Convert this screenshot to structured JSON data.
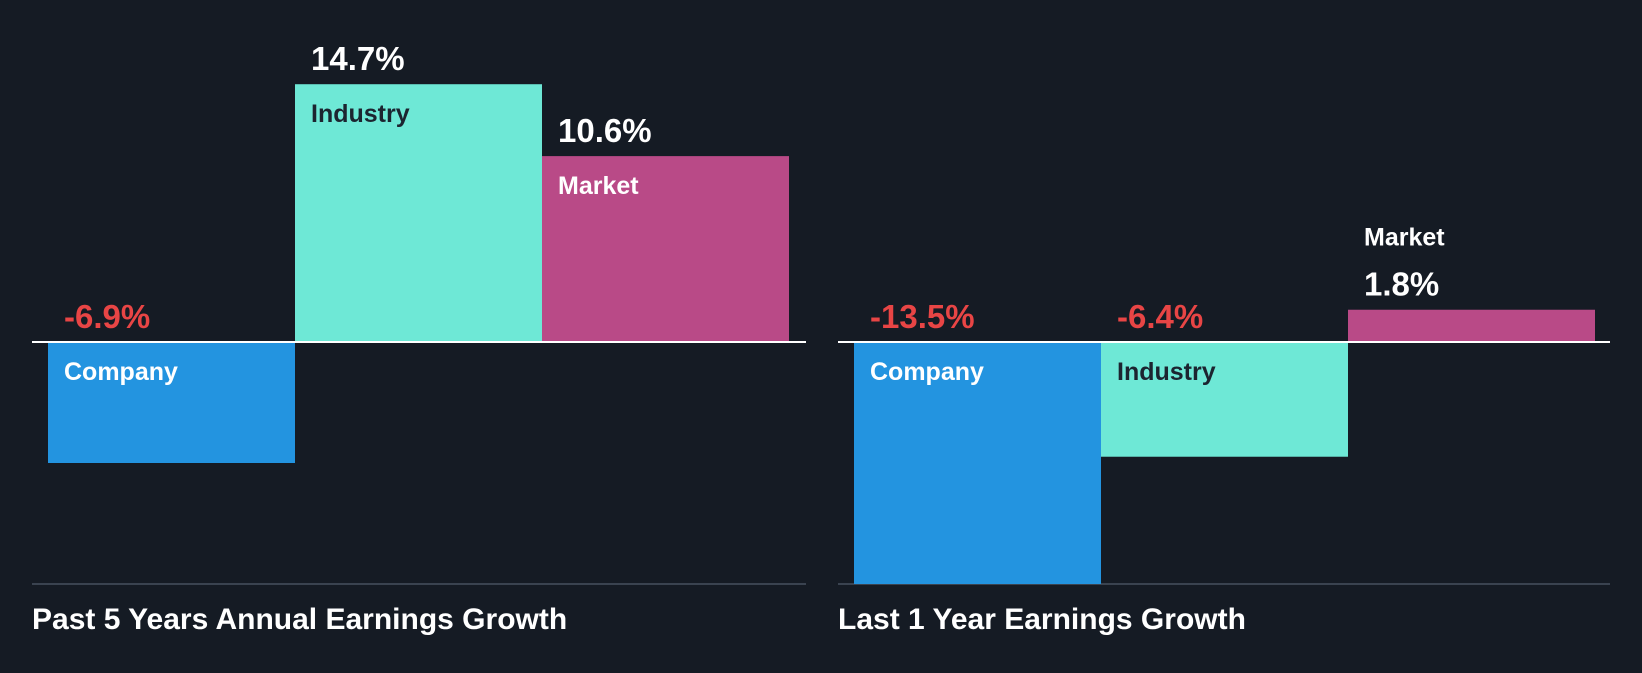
{
  "colors": {
    "background": "#151b24",
    "company": "#2394e0",
    "industry": "#6ee8d6",
    "market": "#b94a87",
    "negative_text": "#e84545",
    "positive_text": "#ffffff",
    "dark_label": "#1c2430",
    "zero_line": "#ffffff",
    "base_line": "#3a4350"
  },
  "chart_data": [
    {
      "type": "bar",
      "title": "Past 5 Years Annual Earnings Growth",
      "categories": [
        "Company",
        "Industry",
        "Market"
      ],
      "values": [
        -6.9,
        14.7,
        10.6
      ],
      "value_labels": [
        "-6.9%",
        "14.7%",
        "10.6%"
      ],
      "ylim": [
        -13.8,
        14.7
      ],
      "grid": false,
      "legend": "none"
    },
    {
      "type": "bar",
      "title": "Last 1 Year Earnings Growth",
      "categories": [
        "Company",
        "Industry",
        "Market"
      ],
      "values": [
        -13.5,
        -6.4,
        1.8
      ],
      "value_labels": [
        "-13.5%",
        "-6.4%",
        "1.8%"
      ],
      "ylim": [
        -13.5,
        14.1
      ],
      "grid": false,
      "legend": "none"
    }
  ]
}
